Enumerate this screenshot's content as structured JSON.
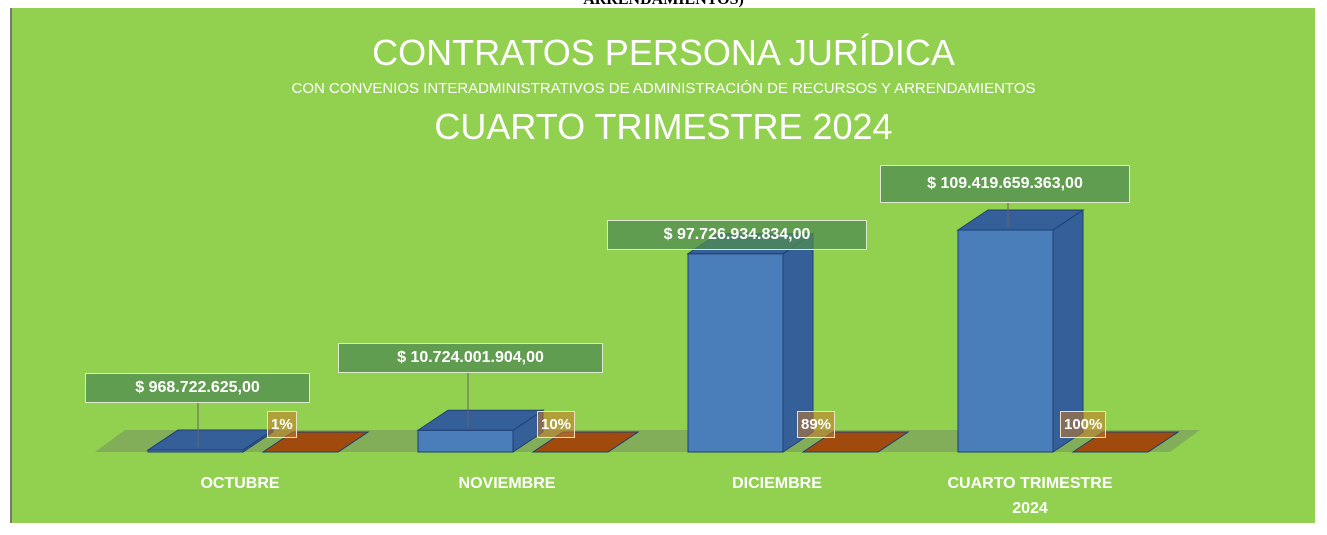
{
  "caption_fragment": "ARRENDAMIENTOS)",
  "chart_data": {
    "type": "bar3d",
    "title": "CONTRATOS PERSONA JURÍDICA",
    "subtitle": "CON CONVENIOS INTERADMINISTRATIVOS DE ADMINISTRACIÓN DE RECURSOS Y ARRENDAMIENTOS",
    "title2": "CUARTO TRIMESTRE 2024",
    "categories": [
      "OCTUBRE",
      "NOVIEMBRE",
      "DICIEMBRE",
      "CUARTO TRIMESTRE 2024"
    ],
    "series": [
      {
        "color": "#4a7ebb",
        "values": [
          968722625,
          10724001904,
          97726934834,
          109419659363
        ],
        "value_labels": [
          "$ 968.722.625,00",
          "$ 10.724.001.904,00",
          "$ 97.726.934.834,00",
          "$ 109.419.659.363,00"
        ]
      },
      {
        "color": "#c55a11",
        "values": [
          1,
          10,
          89,
          100
        ],
        "value_labels": [
          "1%",
          "10%",
          "89%",
          "100%"
        ]
      }
    ]
  }
}
